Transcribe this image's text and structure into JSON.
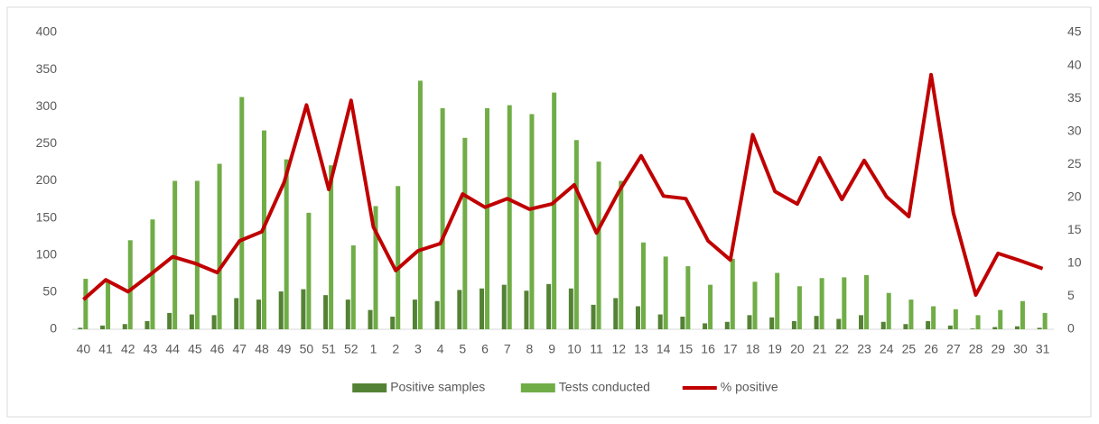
{
  "chart_data": {
    "type": "bar",
    "categories": [
      "40",
      "41",
      "42",
      "43",
      "44",
      "45",
      "46",
      "47",
      "48",
      "49",
      "50",
      "51",
      "52",
      "1",
      "2",
      "3",
      "4",
      "5",
      "6",
      "7",
      "8",
      "9",
      "10",
      "11",
      "12",
      "13",
      "14",
      "15",
      "16",
      "17",
      "18",
      "19",
      "20",
      "21",
      "22",
      "23",
      "24",
      "25",
      "26",
      "27",
      "28",
      "29",
      "30",
      "31"
    ],
    "series": [
      {
        "name": "Positive samples",
        "type": "bar",
        "color": "#548235",
        "values": [
          2,
          5,
          7,
          11,
          22,
          20,
          19,
          42,
          40,
          51,
          54,
          46,
          40,
          26,
          17,
          40,
          38,
          53,
          55,
          60,
          52,
          61,
          55,
          33,
          42,
          31,
          20,
          17,
          8,
          10,
          19,
          16,
          11,
          18,
          14,
          19,
          10,
          7,
          11,
          5,
          1,
          3,
          4,
          2
        ]
      },
      {
        "name": "Tests conducted",
        "type": "bar",
        "color": "#70ad47",
        "values": [
          68,
          65,
          120,
          148,
          200,
          200,
          223,
          313,
          268,
          229,
          157,
          221,
          113,
          166,
          193,
          335,
          298,
          258,
          298,
          302,
          290,
          319,
          255,
          226,
          200,
          117,
          98,
          85,
          60,
          95,
          64,
          76,
          58,
          69,
          70,
          73,
          49,
          40,
          31,
          27,
          19,
          26,
          38,
          22
        ]
      },
      {
        "name": "% positive",
        "type": "line",
        "axis": "y2",
        "color": "#c00000",
        "values": [
          4.5,
          7.5,
          5.7,
          8.3,
          11,
          10,
          8.6,
          13.4,
          14.8,
          22.3,
          34,
          21.2,
          34.7,
          15.5,
          8.9,
          11.9,
          13,
          20.5,
          18.5,
          19.8,
          18.2,
          19,
          21.9,
          14.6,
          20.9,
          26.3,
          20.2,
          19.8,
          13.4,
          10.5,
          29.5,
          20.9,
          19,
          26,
          19.7,
          25.6,
          20.1,
          17.1,
          38.6,
          17.6,
          5.2,
          11.5,
          10.4,
          9.2
        ]
      }
    ],
    "ylim": [
      0,
      400
    ],
    "yticks": [
      0,
      50,
      100,
      150,
      200,
      250,
      300,
      350,
      400
    ],
    "y2lim": [
      0,
      45
    ],
    "y2ticks": [
      0,
      5,
      10,
      15,
      20,
      25,
      30,
      35,
      40,
      45
    ],
    "grid": false,
    "legend": "bottom"
  }
}
